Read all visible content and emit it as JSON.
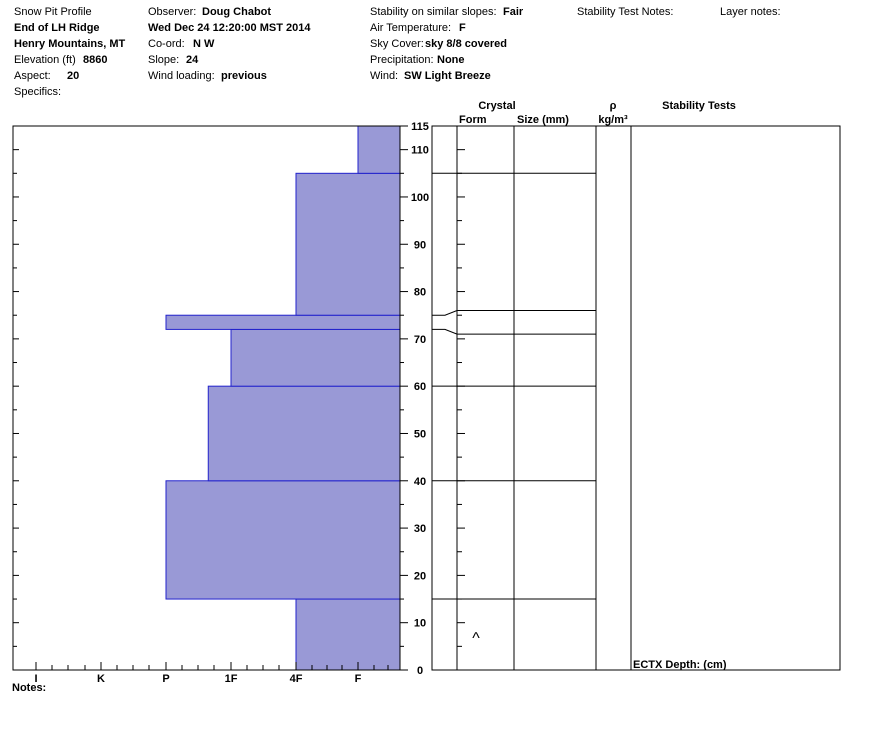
{
  "header": {
    "col1": {
      "title": "Snow Pit Profile",
      "location": "End of LH Ridge",
      "range": "Henry Mountains, MT",
      "elevation_label": "Elevation (ft)",
      "elevation_value": "8860",
      "aspect_label": "Aspect:",
      "aspect_value": "20",
      "specifics_label": "Specifics:"
    },
    "col2": {
      "observer_label": "Observer:",
      "observer_value": "Doug Chabot",
      "date": "Wed Dec 24 12:20:00 MST 2014",
      "coord_label": "Co-ord:",
      "coord_value": "N  W",
      "slope_label": "Slope:",
      "slope_value": "24",
      "wind_loading_label": "Wind loading:",
      "wind_loading_value": "previous"
    },
    "col3": {
      "stability_label": "Stability on similar slopes:",
      "stability_value": "Fair",
      "air_temp_label": "Air Temperature:",
      "air_temp_value": "F",
      "sky_label": "Sky Cover:",
      "sky_value": "sky 8/8 covered",
      "precip_label": "Precipitation:",
      "precip_value": "None",
      "wind_label": "Wind:",
      "wind_value": "SW Light Breeze"
    },
    "stability_test_notes_label": "Stability Test Notes:",
    "layer_notes_label": "Layer notes:"
  },
  "columns": {
    "crystal": "Crystal",
    "form": "Form",
    "size": "Size (mm)",
    "rho": "ρ",
    "rho_unit": "kg/m³",
    "stability_tests": "Stability Tests"
  },
  "stability_test_entry": "ECTX   Depth: (cm)",
  "notes_label": "Notes:",
  "form_symbol": "^",
  "colors": {
    "bar_fill": "#9999d6",
    "bar_edge": "#2222cc"
  },
  "chart_data": {
    "type": "bar",
    "orientation": "horizontal",
    "ylim": [
      0,
      115
    ],
    "y_ticks": [
      0,
      10,
      20,
      30,
      40,
      50,
      60,
      70,
      80,
      90,
      100,
      110,
      115
    ],
    "hardness_scale": [
      "I",
      "K",
      "P",
      "1F",
      "4F",
      "F"
    ],
    "layers": [
      {
        "bottom": 0,
        "top": 15,
        "hardness": "4F"
      },
      {
        "bottom": 15,
        "top": 40,
        "hardness": "P"
      },
      {
        "bottom": 40,
        "top": 60,
        "hardness": "P+"
      },
      {
        "bottom": 60,
        "top": 72,
        "hardness": "1F"
      },
      {
        "bottom": 72,
        "top": 75,
        "hardness": "P"
      },
      {
        "bottom": 75,
        "top": 105,
        "hardness": "4F"
      },
      {
        "bottom": 105,
        "top": 115,
        "hardness": "F"
      }
    ]
  }
}
